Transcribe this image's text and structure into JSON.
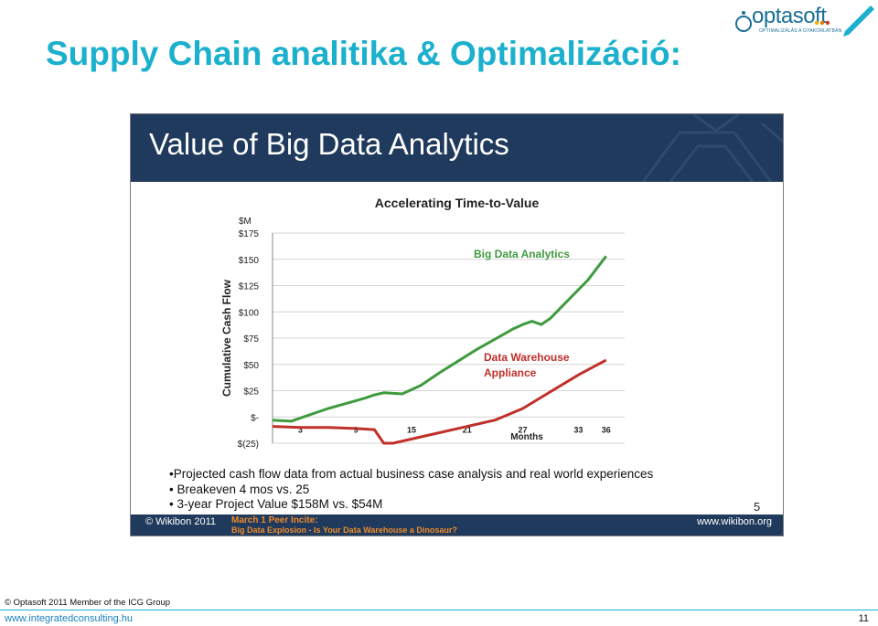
{
  "page": {
    "title": "Supply Chain analitika & Optimalizáció:",
    "logo_text": "optasoft",
    "logo_sub": "OPTIMALIZÁLÁS A GYAKORLATBAN",
    "copyright": "© Optasoft 2011 Member of the ICG Group",
    "website": "www.integratedconsulting.hu",
    "page_number": "11"
  },
  "slide": {
    "title": "Value of Big Data Analytics",
    "bullets": [
      "•Projected cash flow data from actual business case analysis and real world experiences",
      "• Breakeven 4 mos vs. 25",
      "• 3-year Project Value $158M vs. $54M"
    ],
    "page_number": "5",
    "footer_left": "© Wikibon 2011",
    "footer_mid1": "March 1 Peer Incite:",
    "footer_mid2": "Big Data Explosion - Is Your Data Warehouse a Dinosaur?",
    "footer_right": "www.wikibon.org"
  },
  "colors": {
    "title": "#1bb0ce",
    "slide_bg_dark": "#1f3a5c",
    "big_data_series": "#3f9b3f",
    "warehouse_series": "#c0302b",
    "footer_accent": "#f08a2a"
  },
  "chart_data": {
    "type": "line",
    "title": "Accelerating Time-to-Value",
    "xlabel": "Months",
    "ylabel": "Cumulative Cash Flow",
    "y_unit_label": "$M",
    "ylim": [
      -25,
      175
    ],
    "xlim": [
      0,
      38
    ],
    "x_ticks": [
      3,
      9,
      15,
      21,
      27,
      33,
      36
    ],
    "y_ticks": [
      {
        "value": 175,
        "label": "$175"
      },
      {
        "value": 150,
        "label": "$150"
      },
      {
        "value": 125,
        "label": "$125"
      },
      {
        "value": 100,
        "label": "$100"
      },
      {
        "value": 75,
        "label": "$75"
      },
      {
        "value": 50,
        "label": "$50"
      },
      {
        "value": 25,
        "label": "$25"
      },
      {
        "value": 0,
        "label": "$-"
      },
      {
        "value": -25,
        "label": "$(25)"
      }
    ],
    "grid": true,
    "series": [
      {
        "name": "Big Data Analytics",
        "color": "#3f9b3f",
        "x": [
          0,
          2,
          4,
          6,
          8,
          10,
          11,
          12,
          14,
          16,
          18,
          20,
          22,
          24,
          26,
          27,
          28,
          29,
          30,
          32,
          34,
          36
        ],
        "y": [
          -3,
          -4,
          2,
          8,
          13,
          18,
          21,
          23,
          22,
          30,
          42,
          53,
          64,
          74,
          84,
          88,
          91,
          88,
          94,
          112,
          130,
          153
        ]
      },
      {
        "name": "Data Warehouse Appliance",
        "color": "#c0302b",
        "x": [
          0,
          3,
          6,
          9,
          11,
          12,
          13,
          15,
          18,
          21,
          24,
          27,
          30,
          33,
          36
        ],
        "y": [
          -9,
          -10,
          -10,
          -11,
          -12,
          -25,
          -25,
          -21,
          -15,
          -9,
          -3,
          8,
          24,
          40,
          54
        ]
      }
    ],
    "annotations": [
      "Big Data Analytics",
      "Data Warehouse Appliance"
    ]
  }
}
